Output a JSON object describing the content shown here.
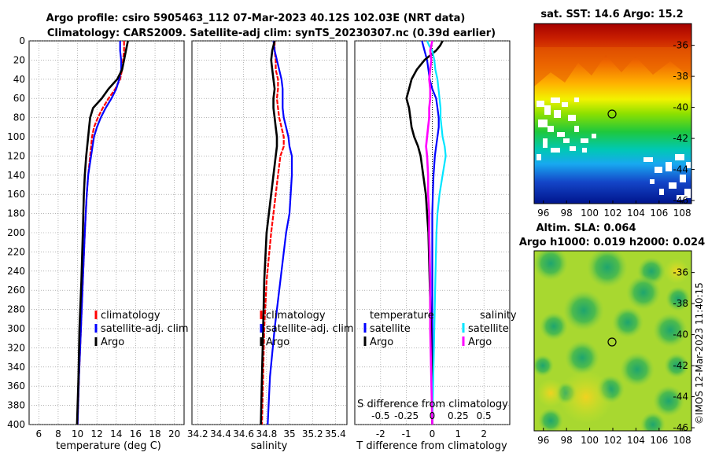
{
  "header": {
    "title_line1": "Argo profile: csiro 5905463_112 07-Mar-2023 40.12S 102.03E (NRT data)",
    "title_line2": "Climatology: CARS2009. Satellite-adj clim: synTS_20230307.nc (0.39d earlier)"
  },
  "colors": {
    "climatology": "#ff0000",
    "satellite": "#0000ff",
    "argo": "#000000",
    "salinity_diff": "#ff00ff",
    "salinity_sat": "#00e5ff",
    "axis": "#000000",
    "grid": "#888888"
  },
  "legends": {
    "temp_panel": [
      "climatology",
      "satellite-adj. clim",
      "Argo"
    ],
    "sal_panel": [
      "climatology",
      "satellite-adj. clim",
      "Argo"
    ],
    "diff_panel": {
      "temp_header": "temperature",
      "sal_header": "salinity",
      "temp_items": [
        "satellite",
        "Argo"
      ],
      "sal_items": [
        "satellite",
        "Argo"
      ]
    }
  },
  "maps": {
    "sst_title": "sat. SST: 14.6  Argo: 15.2",
    "sla_title_line1": "Altim. SLA: 0.064",
    "sla_title_line2": "Argo h1000: 0.019 h2000: 0.024",
    "lat_ticks": [
      "-36",
      "-38",
      "-40",
      "-42",
      "-44",
      "-46"
    ],
    "lon_ticks": [
      "96",
      "98",
      "100",
      "102",
      "104",
      "106",
      "108"
    ],
    "float_lat": -40.12,
    "float_lon": 102.03,
    "credit": "©IMOS 12-Mar-2023 11:40:15"
  },
  "chart_data": [
    {
      "type": "line",
      "id": "temperature",
      "xlabel": "temperature (deg C)",
      "ylabel": "",
      "xlim": [
        5,
        21
      ],
      "ylim": [
        400,
        0
      ],
      "xticks": [
        6,
        8,
        10,
        12,
        14,
        16,
        18,
        20
      ],
      "yticks": [
        0,
        20,
        40,
        60,
        80,
        100,
        120,
        140,
        160,
        180,
        200,
        220,
        240,
        260,
        280,
        300,
        320,
        340,
        360,
        380,
        400
      ],
      "depth": [
        0,
        10,
        20,
        30,
        40,
        50,
        60,
        70,
        80,
        90,
        100,
        120,
        140,
        160,
        180,
        200,
        250,
        300,
        350,
        400
      ],
      "series": [
        {
          "name": "climatology",
          "values": [
            14.8,
            14.8,
            14.7,
            14.6,
            14.4,
            13.9,
            13.2,
            12.6,
            12.1,
            11.7,
            11.5,
            11.3,
            11.1,
            10.95,
            10.85,
            10.75,
            10.55,
            10.35,
            10.15,
            10.0
          ]
        },
        {
          "name": "satellite-adj. clim",
          "values": [
            14.4,
            14.4,
            14.5,
            14.5,
            14.3,
            14.0,
            13.5,
            12.9,
            12.4,
            12.0,
            11.7,
            11.4,
            11.1,
            10.95,
            10.85,
            10.75,
            10.55,
            10.35,
            10.15,
            10.0
          ]
        },
        {
          "name": "Argo",
          "values": [
            15.2,
            15.0,
            14.8,
            14.6,
            14.1,
            13.2,
            12.5,
            11.6,
            11.3,
            11.2,
            11.1,
            10.9,
            10.75,
            10.65,
            10.6,
            10.55,
            10.4,
            10.2,
            10.1,
            9.95
          ]
        }
      ]
    },
    {
      "type": "line",
      "id": "salinity",
      "xlabel": "salinity",
      "xlim": [
        34.15,
        35.5
      ],
      "ylim": [
        400,
        0
      ],
      "xticks": [
        "34.2",
        "34.4",
        "34.6",
        "34.8",
        "35",
        "35.2",
        "35.4"
      ],
      "depth": [
        0,
        10,
        20,
        30,
        40,
        50,
        60,
        70,
        80,
        90,
        100,
        110,
        120,
        140,
        160,
        180,
        200,
        250,
        300,
        350,
        400
      ],
      "series": [
        {
          "name": "climatology",
          "values": [
            34.87,
            34.87,
            34.88,
            34.88,
            34.9,
            34.9,
            34.89,
            34.9,
            34.91,
            34.93,
            34.95,
            34.95,
            34.92,
            34.9,
            34.88,
            34.86,
            34.84,
            34.8,
            34.78,
            34.77,
            34.76
          ]
        },
        {
          "name": "satellite-adj. clim",
          "values": [
            34.86,
            34.87,
            34.89,
            34.91,
            34.93,
            34.94,
            34.94,
            34.94,
            34.95,
            34.97,
            34.99,
            35.0,
            35.02,
            35.02,
            35.01,
            35.0,
            34.97,
            34.92,
            34.87,
            34.83,
            34.81
          ]
        },
        {
          "name": "Argo",
          "values": [
            34.87,
            34.85,
            34.84,
            34.85,
            34.86,
            34.87,
            34.86,
            34.86,
            34.87,
            34.88,
            34.89,
            34.89,
            34.88,
            34.86,
            34.84,
            34.82,
            34.8,
            34.78,
            34.77,
            34.76,
            34.75
          ]
        }
      ]
    },
    {
      "type": "line",
      "id": "difference",
      "xlabel": "T difference from climatology",
      "xlabel_top": "S difference from climatology",
      "xlim": [
        -3,
        3
      ],
      "ylim": [
        400,
        0
      ],
      "xticks": [
        -2,
        -1,
        0,
        1,
        2
      ],
      "xtick_labels": [
        "-2",
        "-1",
        "0",
        "1",
        "2"
      ],
      "s_xticks": [
        -0.5,
        -0.25,
        0,
        0.25,
        0.5
      ],
      "s_xtick_labels": [
        "-0.5",
        "-0.25",
        "0",
        "0.25",
        "0.5"
      ],
      "depth": [
        0,
        5,
        10,
        20,
        30,
        40,
        50,
        60,
        70,
        80,
        90,
        100,
        110,
        120,
        140,
        160,
        180,
        200,
        250,
        300,
        350,
        400
      ],
      "series": [
        {
          "name": "temperature satellite",
          "values": [
            -0.4,
            -0.35,
            -0.3,
            -0.2,
            -0.15,
            -0.1,
            0.0,
            0.15,
            0.2,
            0.25,
            0.25,
            0.2,
            0.15,
            0.1,
            0.05,
            0.02,
            0.0,
            0.0,
            0.0,
            0.0,
            0.0,
            0.0
          ]
        },
        {
          "name": "temperature Argo",
          "values": [
            0.4,
            0.3,
            0.15,
            -0.3,
            -0.6,
            -0.8,
            -0.9,
            -1.0,
            -0.9,
            -0.85,
            -0.8,
            -0.7,
            -0.55,
            -0.45,
            -0.35,
            -0.25,
            -0.2,
            -0.15,
            -0.1,
            -0.05,
            -0.02,
            0.0
          ]
        },
        {
          "name": "salinity satellite",
          "values": [
            -0.05,
            -0.03,
            0.0,
            0.02,
            0.03,
            0.05,
            0.06,
            0.07,
            0.08,
            0.08,
            0.09,
            0.1,
            0.12,
            0.13,
            0.1,
            0.07,
            0.05,
            0.04,
            0.03,
            0.02,
            0.01,
            0.0
          ]
        },
        {
          "name": "salinity Argo",
          "values": [
            0.0,
            -0.01,
            -0.02,
            -0.01,
            -0.02,
            -0.03,
            -0.02,
            -0.02,
            -0.03,
            -0.03,
            -0.04,
            -0.05,
            -0.06,
            -0.05,
            -0.04,
            -0.04,
            -0.03,
            -0.03,
            -0.02,
            -0.02,
            -0.01,
            0.0
          ]
        }
      ]
    }
  ]
}
